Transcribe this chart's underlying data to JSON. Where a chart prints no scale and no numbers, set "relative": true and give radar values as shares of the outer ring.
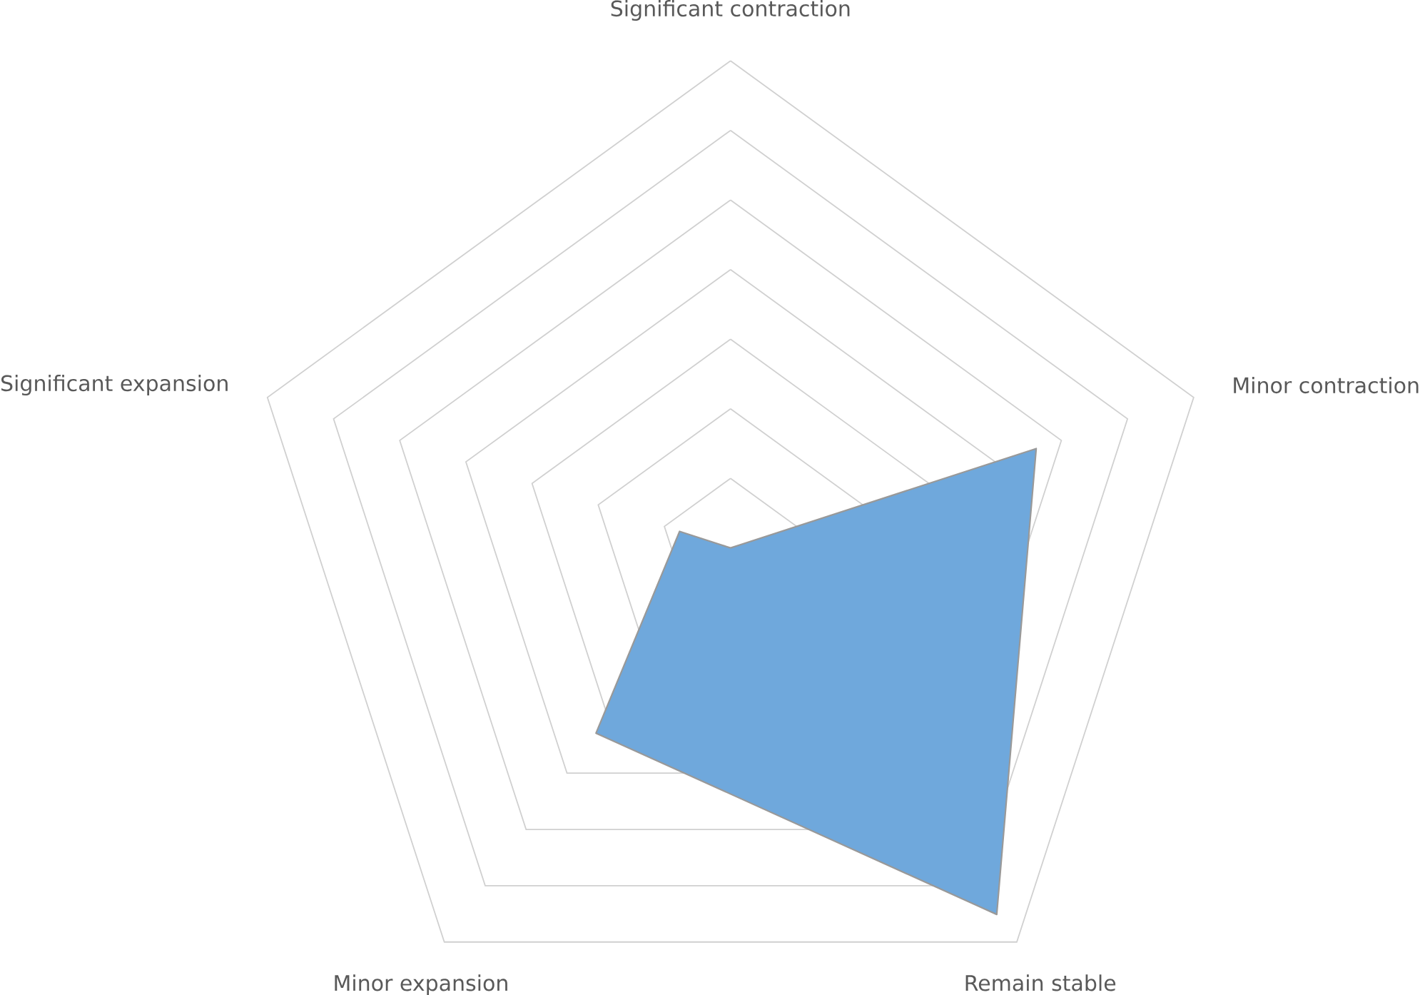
{
  "chart_data": {
    "type": "radar",
    "categories": [
      "Significant contraction",
      "Minor contraction",
      "Remain stable",
      "Minor expansion",
      "Significant expansion"
    ],
    "series": [
      {
        "color": "#6fa8dc",
        "values": [
          0,
          0.66,
          0.93,
          0.47,
          0.11
        ]
      }
    ],
    "relative": true
  }
}
